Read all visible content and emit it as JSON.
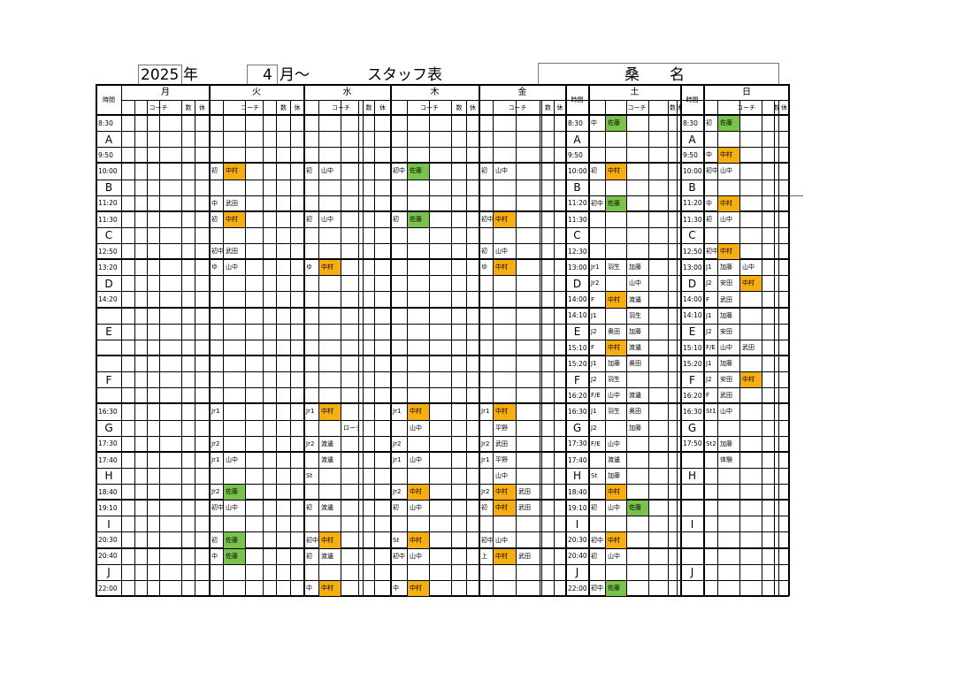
{
  "header": {
    "year": "2025",
    "year_char": "年",
    "month": "4",
    "month_char": "月〜",
    "title": "スタッフ表",
    "location": "桑　　名"
  },
  "days": [
    {
      "name": "月",
      "sublabels": [
        "コーチ",
        "数",
        "休"
      ]
    },
    {
      "name": "火",
      "sublabels": [
        "コーチ",
        "数",
        "休"
      ]
    },
    {
      "name": "水",
      "sublabels": [
        "コーチ",
        "数",
        "休"
      ]
    },
    {
      "name": "木",
      "sublabels": [
        "コーチ",
        "数",
        "休"
      ]
    },
    {
      "name": "金",
      "sublabels": [
        "コーチ",
        "数",
        "休"
      ]
    },
    {
      "name": "土",
      "sublabels": [
        "コーチ",
        "数",
        "休"
      ]
    },
    {
      "name": "日",
      "sublabels": [
        "コーチ",
        "数",
        "休"
      ]
    }
  ],
  "time_header": "時間",
  "weekday_times": [
    {
      "letter": "A",
      "start": "8:30",
      "end": "9:50"
    },
    {
      "letter": "B",
      "start": "10:00",
      "end": "11:20"
    },
    {
      "letter": "C",
      "start": "11:30",
      "end": "12:50"
    },
    {
      "letter": "D",
      "start": "13:20",
      "end": "14:20"
    },
    {
      "letter": "E",
      "start": "",
      "end": ""
    },
    {
      "letter": "F",
      "start": "",
      "end": ""
    },
    {
      "letter": "G",
      "start": "16:30",
      "end": "17:30"
    },
    {
      "letter": "H",
      "start": "17:40",
      "end": "18:40"
    },
    {
      "letter": "I",
      "start": "19:10",
      "end": "20:30"
    },
    {
      "letter": "J",
      "start": "20:40",
      "end": "22:00"
    }
  ],
  "sat_times": [
    {
      "letter": "A",
      "start": "8:30",
      "end": "9:50"
    },
    {
      "letter": "B",
      "start": "10:00",
      "end": "11:20"
    },
    {
      "letter": "C",
      "start": "11:30",
      "end": "12:30"
    },
    {
      "letter": "D",
      "start": "13:00",
      "end": "14:00"
    },
    {
      "letter": "E",
      "start": "14:10",
      "end": "15:10"
    },
    {
      "letter": "F",
      "start": "15:20",
      "end": "16:20"
    },
    {
      "letter": "G",
      "start": "16:30",
      "end": "17:30"
    },
    {
      "letter": "H",
      "start": "17:40",
      "end": "18:40"
    },
    {
      "letter": "I",
      "start": "19:10",
      "end": "20:30"
    },
    {
      "letter": "J",
      "start": "20:40",
      "end": "22:00"
    }
  ],
  "sun_times": [
    {
      "letter": "A",
      "start": "8:30",
      "end": "9:50"
    },
    {
      "letter": "B",
      "start": "10:00",
      "end": "11:20"
    },
    {
      "letter": "C",
      "start": "11:30",
      "end": "12:50"
    },
    {
      "letter": "D",
      "start": "13:00",
      "end": "14:00"
    },
    {
      "letter": "E",
      "start": "14:10",
      "end": "15:10"
    },
    {
      "letter": "F",
      "start": "15:20",
      "end": "16:20"
    },
    {
      "letter": "G",
      "start": "16:30",
      "end": "17:50"
    },
    {
      "letter": "H",
      "start": "",
      "end": ""
    },
    {
      "letter": "I",
      "start": "",
      "end": ""
    },
    {
      "letter": "J",
      "start": "",
      "end": ""
    }
  ],
  "fill_colors": {
    "orange": "#f6ae10",
    "green": "#79c34c"
  },
  "entries": [
    {
      "day": 1,
      "row": 3,
      "lv": "初",
      "c1": "中村",
      "f1": "orange"
    },
    {
      "day": 1,
      "row": 5,
      "lv": "中",
      "c1": "武田"
    },
    {
      "day": 1,
      "row": 6,
      "lv": "初",
      "c1": "中村",
      "f1": "orange"
    },
    {
      "day": 1,
      "row": 8,
      "lv": "初中",
      "c1": "武田"
    },
    {
      "day": 1,
      "row": 9,
      "lv": "ゆ",
      "c1": "山中"
    },
    {
      "day": 1,
      "row": 18,
      "lv": "Jr1"
    },
    {
      "day": 1,
      "row": 20,
      "lv": "Jr2"
    },
    {
      "day": 1,
      "row": 21,
      "lv": "Jr1",
      "c1": "山中"
    },
    {
      "day": 1,
      "row": 23,
      "lv": "Jr2",
      "c1": "佐藤",
      "f1": "green"
    },
    {
      "day": 1,
      "row": 24,
      "lv": "初中",
      "c1": "山中"
    },
    {
      "day": 1,
      "row": 26,
      "lv": "初",
      "c1": "佐藤",
      "f1": "green"
    },
    {
      "day": 1,
      "row": 27,
      "lv": "中",
      "c1": "佐藤",
      "f1": "green"
    },
    {
      "day": 2,
      "row": 3,
      "lv": "初",
      "c1": "山中"
    },
    {
      "day": 2,
      "row": 6,
      "lv": "初",
      "c1": "山中"
    },
    {
      "day": 2,
      "row": 9,
      "lv": "ゆ",
      "c1": "中村",
      "f1": "orange"
    },
    {
      "day": 2,
      "row": 18,
      "lv": "Jr1",
      "c1": "中村",
      "f1": "orange"
    },
    {
      "day": 2,
      "row": 19,
      "c2": "ローテ"
    },
    {
      "day": 2,
      "row": 20,
      "lv": "Jr2",
      "c1": "渡邊"
    },
    {
      "day": 2,
      "row": 21,
      "c1": "渡邊"
    },
    {
      "day": 2,
      "row": 22,
      "lv": "St"
    },
    {
      "day": 2,
      "row": 24,
      "lv": "初",
      "c1": "渡邊"
    },
    {
      "day": 2,
      "row": 26,
      "lv": "初中",
      "c1": "中村",
      "f1": "orange"
    },
    {
      "day": 2,
      "row": 27,
      "lv": "初",
      "c1": "渡邊"
    },
    {
      "day": 2,
      "row": 29,
      "lv": "中",
      "c1": "中村",
      "f1": "orange"
    },
    {
      "day": 3,
      "row": 3,
      "lv": "初中",
      "c1": "佐藤",
      "f1": "green"
    },
    {
      "day": 3,
      "row": 6,
      "lv": "初",
      "c1": "佐藤",
      "f1": "green"
    },
    {
      "day": 3,
      "row": 18,
      "lv": "Jr1",
      "c1": "中村",
      "f1": "orange"
    },
    {
      "day": 3,
      "row": 19,
      "c1": "山中"
    },
    {
      "day": 3,
      "row": 20,
      "lv": "Jr2"
    },
    {
      "day": 3,
      "row": 21,
      "lv": "Jr1",
      "c1": "山中"
    },
    {
      "day": 3,
      "row": 23,
      "lv": "Jr2",
      "c1": "中村",
      "f1": "orange"
    },
    {
      "day": 3,
      "row": 24,
      "lv": "初",
      "c1": "山中"
    },
    {
      "day": 3,
      "row": 26,
      "lv": "St",
      "c1": "中村",
      "f1": "orange"
    },
    {
      "day": 3,
      "row": 27,
      "lv": "初中",
      "c1": "山中"
    },
    {
      "day": 3,
      "row": 29,
      "lv": "中",
      "c1": "中村",
      "f1": "orange"
    },
    {
      "day": 4,
      "row": 3,
      "lv": "初",
      "c1": "山中"
    },
    {
      "day": 4,
      "row": 6,
      "lv": "初中",
      "c1": "中村",
      "f1": "orange"
    },
    {
      "day": 4,
      "row": 8,
      "lv": "初",
      "c1": "山中"
    },
    {
      "day": 4,
      "row": 9,
      "lv": "ゆ",
      "c1": "中村",
      "f1": "orange"
    },
    {
      "day": 4,
      "row": 18,
      "lv": "Jr1",
      "c1": "中村",
      "f1": "orange"
    },
    {
      "day": 4,
      "row": 19,
      "c1": "平野"
    },
    {
      "day": 4,
      "row": 20,
      "lv": "Jr2",
      "c1": "武田"
    },
    {
      "day": 4,
      "row": 21,
      "lv": "Jr1",
      "c1": "平野"
    },
    {
      "day": 4,
      "row": 22,
      "c1": "山中"
    },
    {
      "day": 4,
      "row": 23,
      "lv": "Jr2",
      "c1": "中村",
      "f1": "orange",
      "c2": "武田"
    },
    {
      "day": 4,
      "row": 24,
      "lv": "初",
      "c1": "中村",
      "f1": "orange",
      "c2": "武田"
    },
    {
      "day": 4,
      "row": 26,
      "lv": "初中",
      "c1": "山中"
    },
    {
      "day": 4,
      "row": 27,
      "lv": "上",
      "c1": "中村",
      "f1": "orange",
      "c2": "武田"
    },
    {
      "day": 5,
      "row": 0,
      "lv": "中",
      "c1": "佐藤",
      "f1": "green"
    },
    {
      "day": 5,
      "row": 3,
      "lv": "初",
      "c1": "中村",
      "f1": "orange"
    },
    {
      "day": 5,
      "row": 5,
      "lv": "初中",
      "c1": "佐藤",
      "f1": "green"
    },
    {
      "day": 5,
      "row": 9,
      "lv": "Jr1",
      "c1": "羽生",
      "c2": "加藤"
    },
    {
      "day": 5,
      "row": 10,
      "lv": "Jr2",
      "c2": "山中"
    },
    {
      "day": 5,
      "row": 11,
      "lv": "F",
      "c1": "中村",
      "f1": "orange",
      "c2": "渡邊"
    },
    {
      "day": 5,
      "row": 12,
      "lv": "J1",
      "c2": "羽生"
    },
    {
      "day": 5,
      "row": 13,
      "lv": "J2",
      "c1": "奥田",
      "c2": "加藤"
    },
    {
      "day": 5,
      "row": 14,
      "lv": "F",
      "c1": "中村",
      "f1": "orange",
      "c2": "渡邊"
    },
    {
      "day": 5,
      "row": 15,
      "lv": "J1",
      "c1": "加藤",
      "c2": "奥田"
    },
    {
      "day": 5,
      "row": 16,
      "lv": "J2",
      "c1": "羽生"
    },
    {
      "day": 5,
      "row": 17,
      "lv": "F/E",
      "c1": "山中",
      "c2": "渡邊"
    },
    {
      "day": 5,
      "row": 18,
      "lv": "J1",
      "c1": "羽生",
      "c2": "奥田"
    },
    {
      "day": 5,
      "row": 19,
      "lv": "J2",
      "c2": "加藤"
    },
    {
      "day": 5,
      "row": 20,
      "lv": "F/E",
      "c1": "山中"
    },
    {
      "day": 5,
      "row": 21,
      "c1": "渡邊"
    },
    {
      "day": 5,
      "row": 22,
      "lv": "St",
      "c1": "加藤"
    },
    {
      "day": 5,
      "row": 23,
      "c1": "中村",
      "f1": "orange"
    },
    {
      "day": 5,
      "row": 24,
      "lv": "初",
      "c1": "山中",
      "c2": "佐藤",
      "f2": "green"
    },
    {
      "day": 5,
      "row": 26,
      "lv": "初中",
      "c1": "中村",
      "f1": "orange"
    },
    {
      "day": 5,
      "row": 27,
      "lv": "初",
      "c1": "山中"
    },
    {
      "day": 5,
      "row": 29,
      "lv": "初中",
      "c1": "佐藤",
      "f1": "green"
    },
    {
      "day": 6,
      "row": 0,
      "lv": "初",
      "c1": "佐藤",
      "f1": "green"
    },
    {
      "day": 6,
      "row": 2,
      "lv": "中",
      "c1": "中村",
      "f1": "orange"
    },
    {
      "day": 6,
      "row": 3,
      "lv": "初中",
      "c1": "山中"
    },
    {
      "day": 6,
      "row": 5,
      "lv": "中",
      "c1": "中村",
      "f1": "orange"
    },
    {
      "day": 6,
      "row": 6,
      "lv": "初",
      "c1": "山中"
    },
    {
      "day": 6,
      "row": 8,
      "lv": "初中",
      "c1": "中村",
      "f1": "orange"
    },
    {
      "day": 6,
      "row": 9,
      "lv": "J1",
      "c1": "加藤",
      "c2": "山中"
    },
    {
      "day": 6,
      "row": 10,
      "lv": "J2",
      "c1": "安田",
      "c2": "中村",
      "f2": "orange"
    },
    {
      "day": 6,
      "row": 11,
      "lv": "F",
      "c1": "武田"
    },
    {
      "day": 6,
      "row": 12,
      "lv": "J1",
      "c1": "加藤"
    },
    {
      "day": 6,
      "row": 13,
      "lv": "J2",
      "c1": "安田"
    },
    {
      "day": 6,
      "row": 14,
      "lv": "F/E",
      "c1": "山中",
      "c2": "武田"
    },
    {
      "day": 6,
      "row": 15,
      "lv": "J1",
      "c1": "加藤"
    },
    {
      "day": 6,
      "row": 16,
      "lv": "J2",
      "c1": "安田",
      "c2": "中村",
      "f2": "orange"
    },
    {
      "day": 6,
      "row": 17,
      "lv": "F",
      "c1": "武田"
    },
    {
      "day": 6,
      "row": 18,
      "lv": "St1",
      "c1": "山中"
    },
    {
      "day": 6,
      "row": 20,
      "lv": "St2",
      "c1": "加藤"
    },
    {
      "day": 6,
      "row": 21,
      "c1": "体験"
    }
  ]
}
